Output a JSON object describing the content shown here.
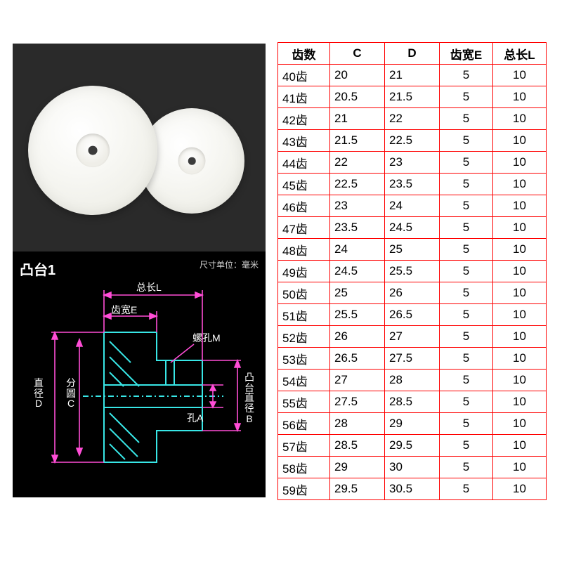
{
  "diagram": {
    "title": "凸台1",
    "unit_note": "尺寸单位：毫米",
    "labels": {
      "total_length": "总长L",
      "tooth_width": "齿宽E",
      "screw_hole": "螺孔M",
      "diameter_D": "直\n径\nD",
      "pitch_circle_C": "分\n圆\nC",
      "hole_A": "孔A",
      "boss_dia_B": "凸\n台\n直\n径\nB"
    },
    "colors": {
      "outline": "#38e6e6",
      "dimension": "#ff4dd6",
      "background": "#000000"
    }
  },
  "table": {
    "columns": [
      "齿数",
      "C",
      "D",
      "齿宽E",
      "总长L"
    ],
    "alignment": [
      "left",
      "left",
      "left",
      "center",
      "center"
    ],
    "rows": [
      [
        "40齿",
        "20",
        "21",
        "5",
        "10"
      ],
      [
        "41齿",
        "20.5",
        "21.5",
        "5",
        "10"
      ],
      [
        "42齿",
        "21",
        "22",
        "5",
        "10"
      ],
      [
        "43齿",
        "21.5",
        "22.5",
        "5",
        "10"
      ],
      [
        "44齿",
        "22",
        "23",
        "5",
        "10"
      ],
      [
        "45齿",
        "22.5",
        "23.5",
        "5",
        "10"
      ],
      [
        "46齿",
        "23",
        "24",
        "5",
        "10"
      ],
      [
        "47齿",
        "23.5",
        "24.5",
        "5",
        "10"
      ],
      [
        "48齿",
        "24",
        "25",
        "5",
        "10"
      ],
      [
        "49齿",
        "24.5",
        "25.5",
        "5",
        "10"
      ],
      [
        "50齿",
        "25",
        "26",
        "5",
        "10"
      ],
      [
        "51齿",
        "25.5",
        "26.5",
        "5",
        "10"
      ],
      [
        "52齿",
        "26",
        "27",
        "5",
        "10"
      ],
      [
        "53齿",
        "26.5",
        "27.5",
        "5",
        "10"
      ],
      [
        "54齿",
        "27",
        "28",
        "5",
        "10"
      ],
      [
        "55齿",
        "27.5",
        "28.5",
        "5",
        "10"
      ],
      [
        "56齿",
        "28",
        "29",
        "5",
        "10"
      ],
      [
        "57齿",
        "28.5",
        "29.5",
        "5",
        "10"
      ],
      [
        "58齿",
        "29",
        "30",
        "5",
        "10"
      ],
      [
        "59齿",
        "29.5",
        "30.5",
        "5",
        "10"
      ]
    ],
    "border_color": "#ff0000",
    "font_size": 17
  }
}
